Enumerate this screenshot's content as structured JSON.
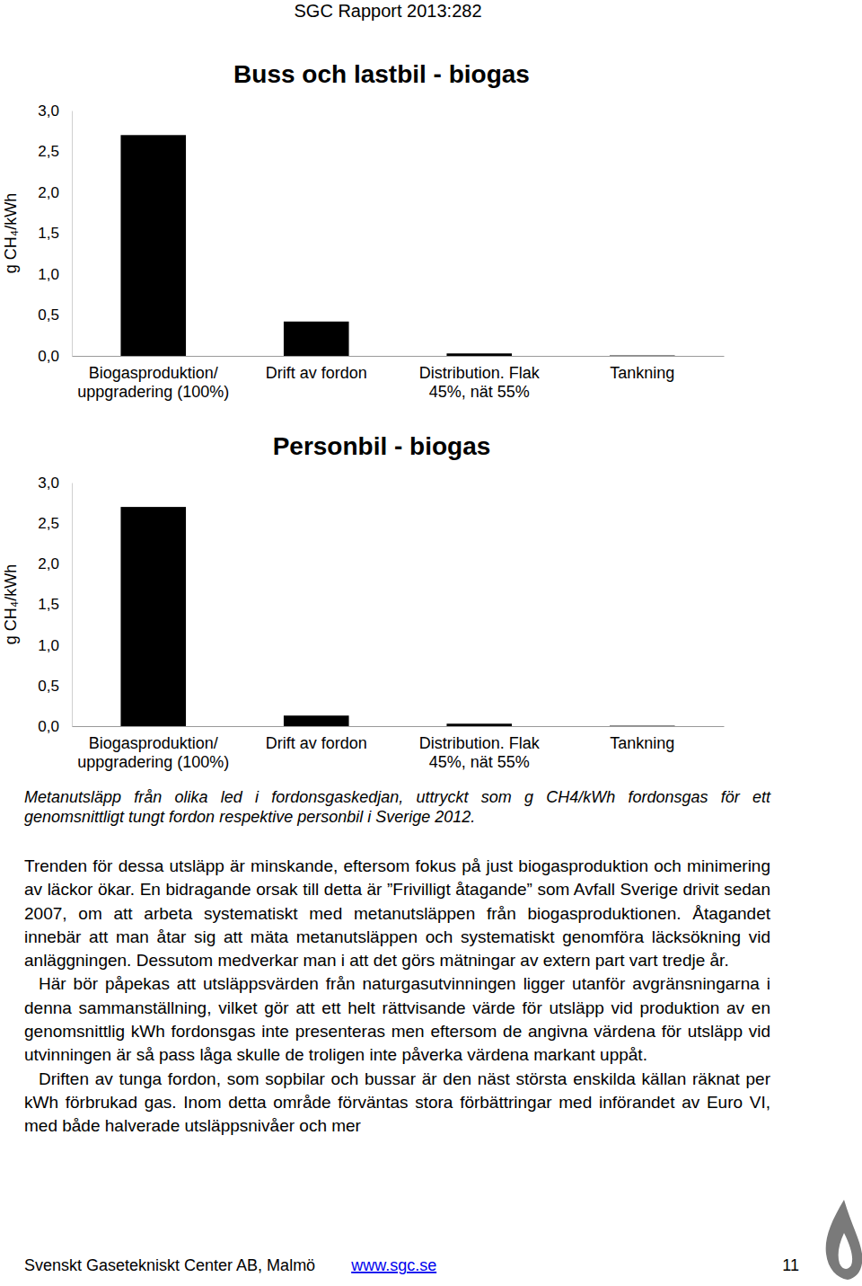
{
  "header": "SGC Rapport 2013:282",
  "chart_data": [
    {
      "type": "bar",
      "title": "Buss och lastbil - biogas",
      "y_label": "g CH₄/kWh",
      "categories": [
        "Biogasproduktion/\nuppgradering (100%)",
        "Drift av fordon",
        "Distribution. Flak\n45%, nät 55%",
        "Tankning"
      ],
      "values": [
        2.7,
        0.42,
        0.03,
        0.005
      ],
      "color": "#000000",
      "ylim": [
        0,
        3
      ],
      "yticks": [
        {
          "value": 0,
          "label": "0,0"
        },
        {
          "value": 0.5,
          "label": "0,5"
        },
        {
          "value": 1,
          "label": "1,0"
        },
        {
          "value": 1.5,
          "label": "1,5"
        },
        {
          "value": 2,
          "label": "2,0"
        },
        {
          "value": 2.5,
          "label": "2,5"
        },
        {
          "value": 3,
          "label": "3,0"
        }
      ],
      "grid": false
    },
    {
      "type": "bar",
      "title": "Personbil - biogas",
      "y_label": "g CH₄/kWh",
      "categories": [
        "Biogasproduktion/\nuppgradering (100%)",
        "Drift av fordon",
        "Distribution. Flak\n45%, nät 55%",
        "Tankning"
      ],
      "values": [
        2.7,
        0.13,
        0.03,
        0.005
      ],
      "color": "#000000",
      "ylim": [
        0,
        3
      ],
      "yticks": [
        {
          "value": 0,
          "label": "0,0"
        },
        {
          "value": 0.5,
          "label": "0,5"
        },
        {
          "value": 1,
          "label": "1,0"
        },
        {
          "value": 1.5,
          "label": "1,5"
        },
        {
          "value": 2,
          "label": "2,0"
        },
        {
          "value": 2.5,
          "label": "2,5"
        },
        {
          "value": 3,
          "label": "3,0"
        }
      ],
      "grid": false
    }
  ],
  "caption": "Metanutsläpp från olika led i fordonsgaskedjan, uttryckt som g CH4/kWh fordonsgas för ett genomsnittligt tungt fordon respektive personbil i Sverige 2012.",
  "paragraphs": [
    "Trenden för dessa utsläpp är minskande, eftersom fokus på just biogasproduktion och minimering av läckor ökar. En bidragande orsak till detta är ”Frivilligt åtagande” som Avfall Sverige drivit sedan 2007, om att arbeta systematiskt med metanutsläppen från biogasproduktionen. Åtagandet innebär att man åtar sig att mäta metanutsläppen och systematiskt genomföra läcksökning vid anläggningen. Dessutom medverkar man i att det görs mätningar av extern part vart tredje år.",
    "Här bör påpekas att utsläppsvärden från naturgasutvinningen ligger utanför avgränsningarna i denna sammanställning, vilket gör att ett helt rättvisande värde för utsläpp vid produktion av en genomsnittlig kWh fordonsgas inte presenteras men eftersom de angivna värdena för utsläpp vid utvinningen är så pass låga skulle de troligen inte påverka värdena markant uppåt.",
    "Driften av tunga fordon, som sopbilar och bussar är den näst största enskilda källan räknat per kWh förbrukad gas. Inom detta område förväntas stora förbättringar med införandet av Euro VI, med både halverade utsläppsnivåer och mer"
  ],
  "footer": {
    "text": "Svenskt Gasetekniskt Center AB, Malmö",
    "link": "www.sgc.se",
    "page": "11"
  }
}
